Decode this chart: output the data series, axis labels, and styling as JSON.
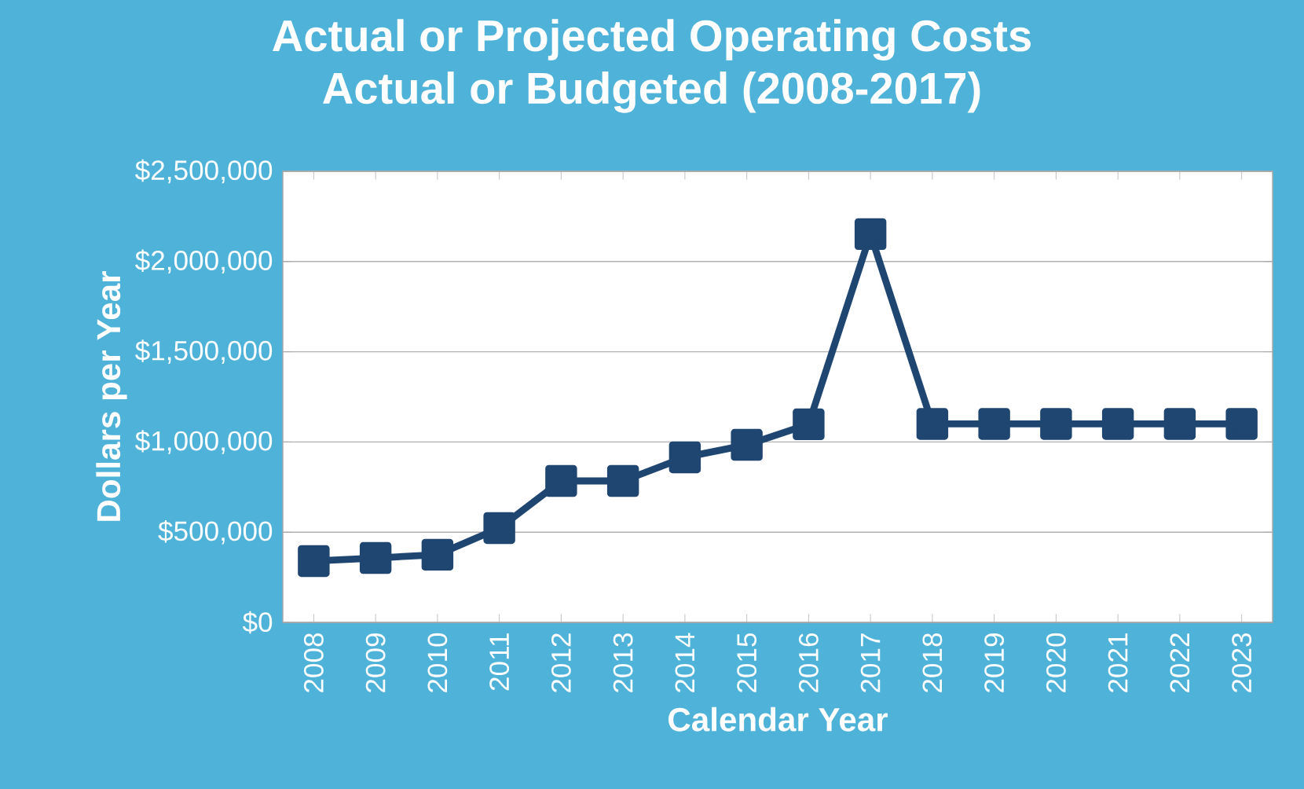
{
  "chart_data": {
    "type": "line",
    "title": "Actual or Projected Operating Costs",
    "subtitle": "Actual or Budgeted (2008-2017)",
    "xlabel": "Calendar Year",
    "ylabel": "Dollars per Year",
    "categories": [
      "2008",
      "2009",
      "2010",
      "2011",
      "2012",
      "2013",
      "2014",
      "2015",
      "2016",
      "2017",
      "2018",
      "2019",
      "2020",
      "2021",
      "2022",
      "2023"
    ],
    "series": [
      {
        "color": "#1f4670",
        "values": [
          340000,
          357000,
          375000,
          523000,
          784000,
          784000,
          915000,
          984000,
          1098000,
          2152000,
          1100000,
          1100000,
          1100000,
          1100000,
          1100000,
          1100000
        ]
      }
    ],
    "ylim": [
      0,
      2500000
    ],
    "yticks": [
      {
        "value": 0,
        "label": "$0"
      },
      {
        "value": 500000,
        "label": "$500,000"
      },
      {
        "value": 1000000,
        "label": "$1,000,000"
      },
      {
        "value": 1500000,
        "label": "$1,500,000"
      },
      {
        "value": 2000000,
        "label": "$2,000,000"
      },
      {
        "value": 2500000,
        "label": "$2,500,000"
      }
    ],
    "grid": "y",
    "marker": "square",
    "line_style": "solid"
  }
}
